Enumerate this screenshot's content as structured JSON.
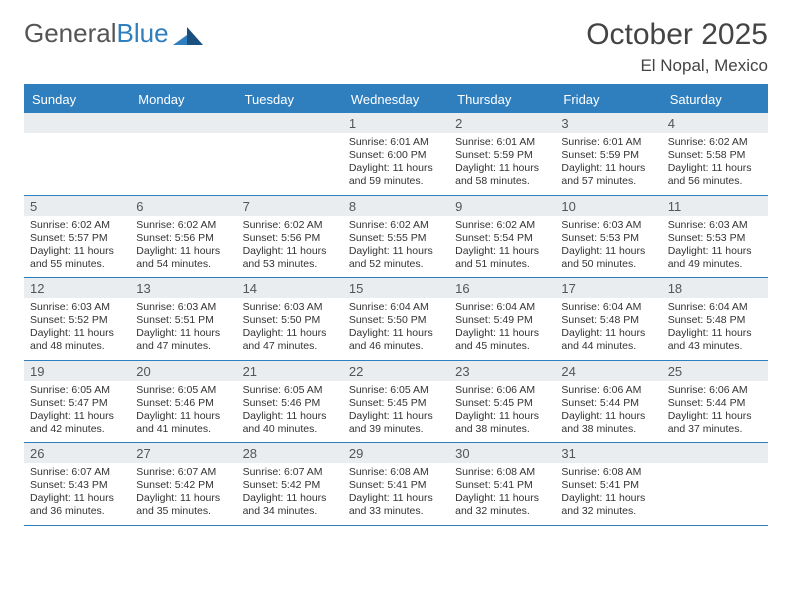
{
  "brand": {
    "name1": "General",
    "name2": "Blue"
  },
  "title": "October 2025",
  "location": "El Nopal, Mexico",
  "colors": {
    "accent": "#2f7fbf",
    "header_row_bg": "#2f7fbf",
    "daynum_bg": "#e9edef",
    "text": "#333333"
  },
  "weekdays": [
    "Sunday",
    "Monday",
    "Tuesday",
    "Wednesday",
    "Thursday",
    "Friday",
    "Saturday"
  ],
  "lead_blanks": 3,
  "trail_blanks": 1,
  "days": [
    {
      "n": 1,
      "sr": "6:01 AM",
      "ss": "6:00 PM",
      "dl": "11 hours and 59 minutes."
    },
    {
      "n": 2,
      "sr": "6:01 AM",
      "ss": "5:59 PM",
      "dl": "11 hours and 58 minutes."
    },
    {
      "n": 3,
      "sr": "6:01 AM",
      "ss": "5:59 PM",
      "dl": "11 hours and 57 minutes."
    },
    {
      "n": 4,
      "sr": "6:02 AM",
      "ss": "5:58 PM",
      "dl": "11 hours and 56 minutes."
    },
    {
      "n": 5,
      "sr": "6:02 AM",
      "ss": "5:57 PM",
      "dl": "11 hours and 55 minutes."
    },
    {
      "n": 6,
      "sr": "6:02 AM",
      "ss": "5:56 PM",
      "dl": "11 hours and 54 minutes."
    },
    {
      "n": 7,
      "sr": "6:02 AM",
      "ss": "5:56 PM",
      "dl": "11 hours and 53 minutes."
    },
    {
      "n": 8,
      "sr": "6:02 AM",
      "ss": "5:55 PM",
      "dl": "11 hours and 52 minutes."
    },
    {
      "n": 9,
      "sr": "6:02 AM",
      "ss": "5:54 PM",
      "dl": "11 hours and 51 minutes."
    },
    {
      "n": 10,
      "sr": "6:03 AM",
      "ss": "5:53 PM",
      "dl": "11 hours and 50 minutes."
    },
    {
      "n": 11,
      "sr": "6:03 AM",
      "ss": "5:53 PM",
      "dl": "11 hours and 49 minutes."
    },
    {
      "n": 12,
      "sr": "6:03 AM",
      "ss": "5:52 PM",
      "dl": "11 hours and 48 minutes."
    },
    {
      "n": 13,
      "sr": "6:03 AM",
      "ss": "5:51 PM",
      "dl": "11 hours and 47 minutes."
    },
    {
      "n": 14,
      "sr": "6:03 AM",
      "ss": "5:50 PM",
      "dl": "11 hours and 47 minutes."
    },
    {
      "n": 15,
      "sr": "6:04 AM",
      "ss": "5:50 PM",
      "dl": "11 hours and 46 minutes."
    },
    {
      "n": 16,
      "sr": "6:04 AM",
      "ss": "5:49 PM",
      "dl": "11 hours and 45 minutes."
    },
    {
      "n": 17,
      "sr": "6:04 AM",
      "ss": "5:48 PM",
      "dl": "11 hours and 44 minutes."
    },
    {
      "n": 18,
      "sr": "6:04 AM",
      "ss": "5:48 PM",
      "dl": "11 hours and 43 minutes."
    },
    {
      "n": 19,
      "sr": "6:05 AM",
      "ss": "5:47 PM",
      "dl": "11 hours and 42 minutes."
    },
    {
      "n": 20,
      "sr": "6:05 AM",
      "ss": "5:46 PM",
      "dl": "11 hours and 41 minutes."
    },
    {
      "n": 21,
      "sr": "6:05 AM",
      "ss": "5:46 PM",
      "dl": "11 hours and 40 minutes."
    },
    {
      "n": 22,
      "sr": "6:05 AM",
      "ss": "5:45 PM",
      "dl": "11 hours and 39 minutes."
    },
    {
      "n": 23,
      "sr": "6:06 AM",
      "ss": "5:45 PM",
      "dl": "11 hours and 38 minutes."
    },
    {
      "n": 24,
      "sr": "6:06 AM",
      "ss": "5:44 PM",
      "dl": "11 hours and 38 minutes."
    },
    {
      "n": 25,
      "sr": "6:06 AM",
      "ss": "5:44 PM",
      "dl": "11 hours and 37 minutes."
    },
    {
      "n": 26,
      "sr": "6:07 AM",
      "ss": "5:43 PM",
      "dl": "11 hours and 36 minutes."
    },
    {
      "n": 27,
      "sr": "6:07 AM",
      "ss": "5:42 PM",
      "dl": "11 hours and 35 minutes."
    },
    {
      "n": 28,
      "sr": "6:07 AM",
      "ss": "5:42 PM",
      "dl": "11 hours and 34 minutes."
    },
    {
      "n": 29,
      "sr": "6:08 AM",
      "ss": "5:41 PM",
      "dl": "11 hours and 33 minutes."
    },
    {
      "n": 30,
      "sr": "6:08 AM",
      "ss": "5:41 PM",
      "dl": "11 hours and 32 minutes."
    },
    {
      "n": 31,
      "sr": "6:08 AM",
      "ss": "5:41 PM",
      "dl": "11 hours and 32 minutes."
    }
  ],
  "labels": {
    "sunrise": "Sunrise:",
    "sunset": "Sunset:",
    "daylight": "Daylight:"
  }
}
